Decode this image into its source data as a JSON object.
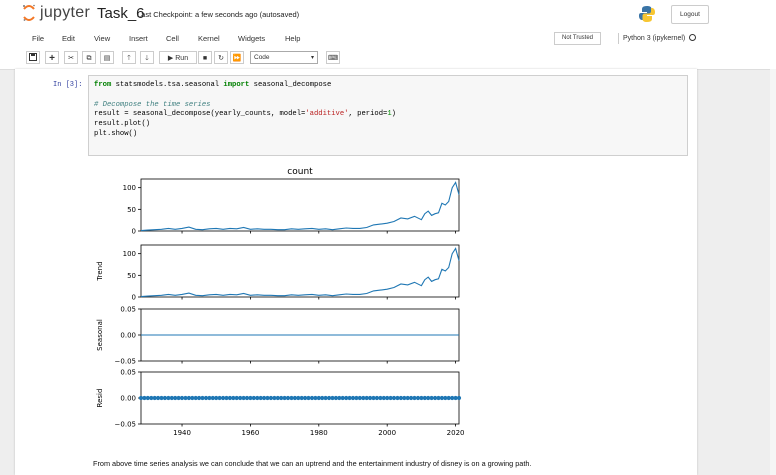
{
  "header": {
    "logo_text": "jupyter",
    "notebook_name": "Task_6",
    "checkpoint": "Last Checkpoint: a few seconds ago  (autosaved)",
    "logout_label": "Logout"
  },
  "menu": {
    "items": [
      "File",
      "Edit",
      "View",
      "Insert",
      "Cell",
      "Kernel",
      "Widgets",
      "Help"
    ],
    "trust_label": "Not Trusted",
    "kernel_label": "Python 3 (ipykernel)"
  },
  "toolbar": {
    "run_label": "Run",
    "cell_type": "Code"
  },
  "cell": {
    "prompt": "In [3]:",
    "code_lines": [
      "from statsmodels.tsa.seasonal import seasonal_decompose",
      "",
      "# Decompose the time series",
      "result = seasonal_decompose(yearly_counts, model='additive', period=1)",
      "result.plot()",
      "plt.show()"
    ]
  },
  "chart_data": {
    "type": "line",
    "title": "count",
    "x_ticks": [
      1940,
      1960,
      1980,
      2000,
      2020
    ],
    "x_range": [
      1928,
      2021
    ],
    "panels": [
      {
        "ylabel": "",
        "ylim": [
          0,
          120
        ],
        "yticks": [
          "0",
          "50",
          "100"
        ]
      },
      {
        "ylabel": "Trend",
        "ylim": [
          0,
          120
        ],
        "yticks": [
          "0",
          "50",
          "100"
        ]
      },
      {
        "ylabel": "Seasonal",
        "ylim": [
          -0.05,
          0.05
        ],
        "yticks": [
          "0.05",
          "0.00",
          "−0.05"
        ]
      },
      {
        "ylabel": "Resid",
        "ylim": [
          -0.05,
          0.05
        ],
        "yticks": [
          "0.05",
          "0.00",
          "−0.05"
        ]
      }
    ],
    "series": {
      "years": [
        1928,
        1930,
        1932,
        1934,
        1936,
        1938,
        1940,
        1942,
        1944,
        1946,
        1948,
        1950,
        1952,
        1954,
        1956,
        1958,
        1960,
        1962,
        1964,
        1966,
        1968,
        1970,
        1972,
        1974,
        1976,
        1978,
        1980,
        1982,
        1984,
        1986,
        1988,
        1990,
        1992,
        1994,
        1996,
        1998,
        2000,
        2002,
        2004,
        2006,
        2008,
        2010,
        2011,
        2012,
        2013,
        2014,
        2015,
        2016,
        2017,
        2018,
        2019,
        2020,
        2021
      ],
      "observed": [
        1,
        2,
        3,
        4,
        6,
        4,
        6,
        9,
        4,
        3,
        5,
        6,
        4,
        6,
        5,
        8,
        4,
        5,
        4,
        4,
        3,
        3,
        5,
        4,
        5,
        6,
        4,
        5,
        3,
        5,
        7,
        6,
        6,
        8,
        14,
        16,
        18,
        22,
        30,
        28,
        34,
        26,
        40,
        46,
        36,
        40,
        42,
        64,
        60,
        68,
        100,
        112,
        84
      ],
      "trend": [
        1,
        2,
        3,
        4,
        6,
        4,
        6,
        9,
        4,
        3,
        5,
        6,
        4,
        6,
        5,
        8,
        4,
        5,
        4,
        4,
        3,
        3,
        5,
        4,
        5,
        6,
        4,
        5,
        3,
        5,
        7,
        6,
        6,
        8,
        14,
        16,
        18,
        22,
        30,
        28,
        34,
        26,
        40,
        46,
        36,
        40,
        42,
        64,
        60,
        68,
        100,
        112,
        84
      ],
      "seasonal": 0,
      "resid": 0
    }
  },
  "conclusion": "From above time series analysis we can conclude that we can an uptrend and the entertainment industry of disney is on a growing path.",
  "colors": {
    "line": "#1f77b4",
    "jupyter_orange": "#f37726"
  }
}
